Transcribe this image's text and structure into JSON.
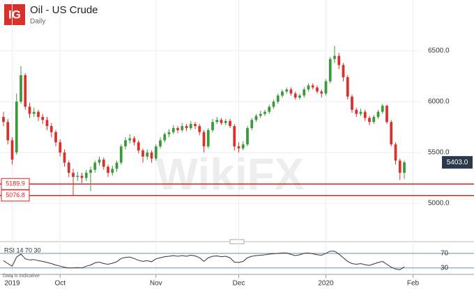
{
  "header": {
    "logo": "IG",
    "title": "Oil - US Crude",
    "subtitle": "Daily"
  },
  "chart_data": {
    "type": "candlestick",
    "up_color": "#3a9a3a",
    "down_color": "#d9302c",
    "ohlc": [
      [
        5850,
        5900,
        5760,
        5800
      ],
      [
        5800,
        5830,
        5580,
        5620
      ],
      [
        5620,
        5650,
        5380,
        5430
      ],
      [
        5500,
        6080,
        5480,
        6000
      ],
      [
        6000,
        6350,
        5980,
        6260
      ],
      [
        6260,
        6280,
        5920,
        5950
      ],
      [
        5950,
        5990,
        5840,
        5880
      ],
      [
        5880,
        5940,
        5850,
        5900
      ],
      [
        5900,
        5920,
        5810,
        5850
      ],
      [
        5850,
        5880,
        5780,
        5820
      ],
      [
        5820,
        5850,
        5720,
        5760
      ],
      [
        5760,
        5790,
        5650,
        5700
      ],
      [
        5700,
        5720,
        5560,
        5600
      ],
      [
        5600,
        5630,
        5460,
        5500
      ],
      [
        5500,
        5530,
        5360,
        5400
      ],
      [
        5400,
        5420,
        5260,
        5300
      ],
      [
        5300,
        5340,
        5080,
        5260
      ],
      [
        5260,
        5310,
        5220,
        5270
      ],
      [
        5270,
        5300,
        5200,
        5250
      ],
      [
        5250,
        5330,
        5220,
        5300
      ],
      [
        5300,
        5360,
        5120,
        5330
      ],
      [
        5330,
        5420,
        5300,
        5400
      ],
      [
        5400,
        5460,
        5370,
        5430
      ],
      [
        5430,
        5450,
        5330,
        5360
      ],
      [
        5360,
        5380,
        5260,
        5300
      ],
      [
        5300,
        5370,
        5270,
        5340
      ],
      [
        5340,
        5420,
        5310,
        5400
      ],
      [
        5400,
        5580,
        5380,
        5560
      ],
      [
        5560,
        5650,
        5530,
        5620
      ],
      [
        5620,
        5680,
        5590,
        5640
      ],
      [
        5640,
        5660,
        5570,
        5600
      ],
      [
        5600,
        5620,
        5490,
        5520
      ],
      [
        5520,
        5540,
        5400,
        5460
      ],
      [
        5460,
        5530,
        5430,
        5500
      ],
      [
        5500,
        5520,
        5400,
        5440
      ],
      [
        5440,
        5580,
        5420,
        5560
      ],
      [
        5560,
        5650,
        5540,
        5620
      ],
      [
        5620,
        5700,
        5600,
        5680
      ],
      [
        5680,
        5730,
        5650,
        5700
      ],
      [
        5700,
        5770,
        5680,
        5740
      ],
      [
        5740,
        5760,
        5690,
        5720
      ],
      [
        5720,
        5790,
        5700,
        5760
      ],
      [
        5760,
        5780,
        5710,
        5740
      ],
      [
        5740,
        5810,
        5720,
        5780
      ],
      [
        5780,
        5800,
        5730,
        5760
      ],
      [
        5760,
        5780,
        5670,
        5700
      ],
      [
        5700,
        5720,
        5500,
        5560
      ],
      [
        5560,
        5740,
        5540,
        5720
      ],
      [
        5720,
        5830,
        5700,
        5800
      ],
      [
        5800,
        5850,
        5780,
        5820
      ],
      [
        5820,
        5840,
        5770,
        5790
      ],
      [
        5790,
        5830,
        5770,
        5810
      ],
      [
        5810,
        5830,
        5740,
        5760
      ],
      [
        5760,
        5780,
        5520,
        5560
      ],
      [
        5560,
        5600,
        5500,
        5540
      ],
      [
        5540,
        5610,
        5520,
        5580
      ],
      [
        5580,
        5760,
        5560,
        5740
      ],
      [
        5740,
        5840,
        5720,
        5820
      ],
      [
        5820,
        5880,
        5800,
        5860
      ],
      [
        5860,
        5910,
        5840,
        5880
      ],
      [
        5880,
        5920,
        5860,
        5900
      ],
      [
        5900,
        5970,
        5880,
        5950
      ],
      [
        5950,
        6020,
        5930,
        6000
      ],
      [
        6000,
        6080,
        5980,
        6060
      ],
      [
        6060,
        6120,
        6040,
        6100
      ],
      [
        6100,
        6140,
        6080,
        6120
      ],
      [
        6120,
        6140,
        6060,
        6080
      ],
      [
        6080,
        6100,
        6020,
        6040
      ],
      [
        6040,
        6080,
        6020,
        6060
      ],
      [
        6060,
        6140,
        6040,
        6120
      ],
      [
        6120,
        6180,
        6100,
        6160
      ],
      [
        6160,
        6180,
        6120,
        6140
      ],
      [
        6140,
        6160,
        6080,
        6100
      ],
      [
        6100,
        6120,
        6040,
        6080
      ],
      [
        6080,
        6220,
        6060,
        6200
      ],
      [
        6200,
        6440,
        6180,
        6420
      ],
      [
        6420,
        6550,
        6380,
        6450
      ],
      [
        6450,
        6480,
        6320,
        6360
      ],
      [
        6360,
        6380,
        6200,
        6240
      ],
      [
        6240,
        6260,
        6020,
        6050
      ],
      [
        6050,
        6070,
        5890,
        5920
      ],
      [
        5920,
        5940,
        5850,
        5880
      ],
      [
        5880,
        5930,
        5860,
        5900
      ],
      [
        5900,
        5920,
        5810,
        5840
      ],
      [
        5840,
        5860,
        5770,
        5800
      ],
      [
        5800,
        5870,
        5780,
        5850
      ],
      [
        5850,
        5920,
        5830,
        5900
      ],
      [
        5900,
        5980,
        5880,
        5960
      ],
      [
        5960,
        5970,
        5780,
        5800
      ],
      [
        5800,
        5820,
        5560,
        5580
      ],
      [
        5580,
        5600,
        5380,
        5420
      ],
      [
        5420,
        5440,
        5230,
        5300
      ],
      [
        5300,
        5420,
        5240,
        5403
      ]
    ],
    "xlim": [
      -0.8,
      96
    ],
    "xticks": [
      {
        "value": 2,
        "label": "2019"
      },
      {
        "value": 13,
        "label": "Oct"
      },
      {
        "value": 35,
        "label": "Nov"
      },
      {
        "value": 54,
        "label": "Dec"
      },
      {
        "value": 74,
        "label": "2020"
      },
      {
        "value": 94,
        "label": "Feb"
      }
    ],
    "ylim": [
      4671,
      7000
    ],
    "yticks": [
      {
        "value": 5000,
        "label": "5000.0"
      },
      {
        "value": 5500,
        "label": "5500.0"
      },
      {
        "value": 6000,
        "label": "6000.0"
      },
      {
        "value": 6500,
        "label": "6500.0"
      }
    ],
    "hlines": [
      5189.9,
      5076.8
    ],
    "hline_color": "#e0201c",
    "last_price": {
      "value": 5403,
      "label": "5403.0"
    },
    "grid": true,
    "rsi": {
      "label": "RSI  14  70  30",
      "color": "#333333",
      "ylim": [
        20,
        85
      ],
      "yticks": [
        30,
        70
      ],
      "values": [
        50,
        42,
        35,
        60,
        68,
        55,
        52,
        53,
        50,
        48,
        45,
        42,
        38,
        35,
        32,
        30,
        30,
        31,
        30,
        35,
        38,
        44,
        46,
        42,
        40,
        43,
        47,
        56,
        59,
        60,
        56,
        51,
        48,
        50,
        47,
        55,
        58,
        61,
        62,
        64,
        62,
        64,
        62,
        65,
        63,
        58,
        48,
        58,
        62,
        63,
        61,
        62,
        58,
        46,
        45,
        48,
        58,
        62,
        64,
        65,
        66,
        68,
        69,
        70,
        71,
        71,
        67,
        64,
        66,
        70,
        71,
        69,
        66,
        65,
        70,
        76,
        76,
        68,
        58,
        48,
        42,
        40,
        42,
        39,
        37,
        41,
        45,
        48,
        40,
        32,
        27,
        25,
        33
      ]
    },
    "note": "Data is indicative",
    "watermark": "WikiFX"
  }
}
